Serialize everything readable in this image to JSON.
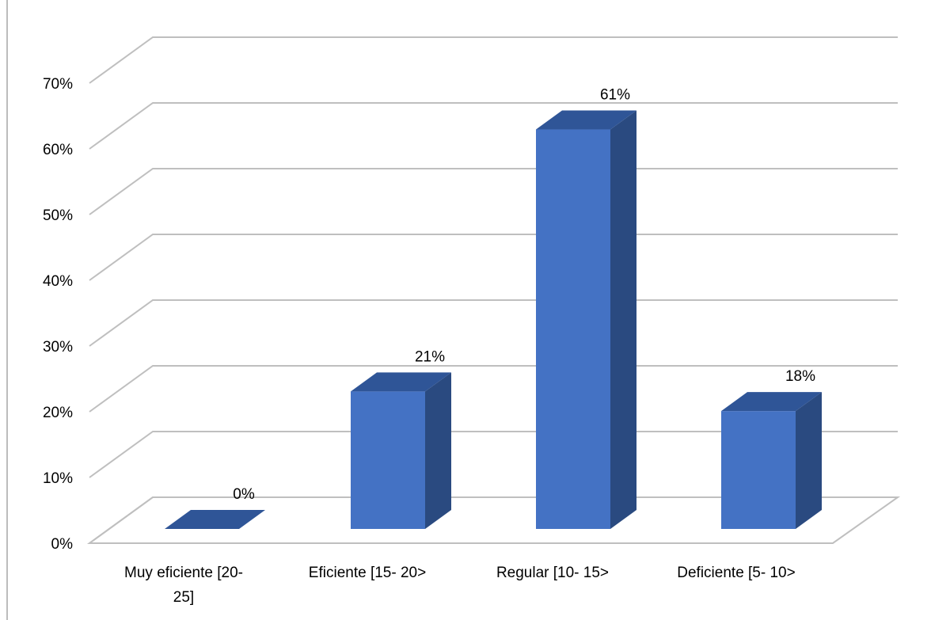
{
  "chart_data": {
    "type": "bar",
    "title": "",
    "xlabel": "",
    "ylabel": "",
    "categories": [
      [
        "Muy eficiente [20-",
        "25]"
      ],
      [
        "Eficiente [15- 20>"
      ],
      [
        "Regular [10- 15>"
      ],
      [
        "Deficiente [5- 10>"
      ]
    ],
    "values": [
      0,
      21,
      61,
      18
    ],
    "data_labels": [
      "0%",
      "21%",
      "61%",
      "18%"
    ],
    "yticks": [
      0,
      10,
      20,
      30,
      40,
      50,
      60,
      70
    ],
    "ytick_labels": [
      "0%",
      "10%",
      "20%",
      "30%",
      "40%",
      "50%",
      "60%",
      "70%"
    ],
    "ylim": [
      0,
      70
    ],
    "style": "3d-column",
    "grid": true,
    "legend": "none",
    "colors": {
      "bar_front": "#4472C4",
      "bar_top": "#2F5597",
      "bar_side": "#2A4A80",
      "gridline": "#BFBFBF",
      "text": "#000000"
    }
  }
}
